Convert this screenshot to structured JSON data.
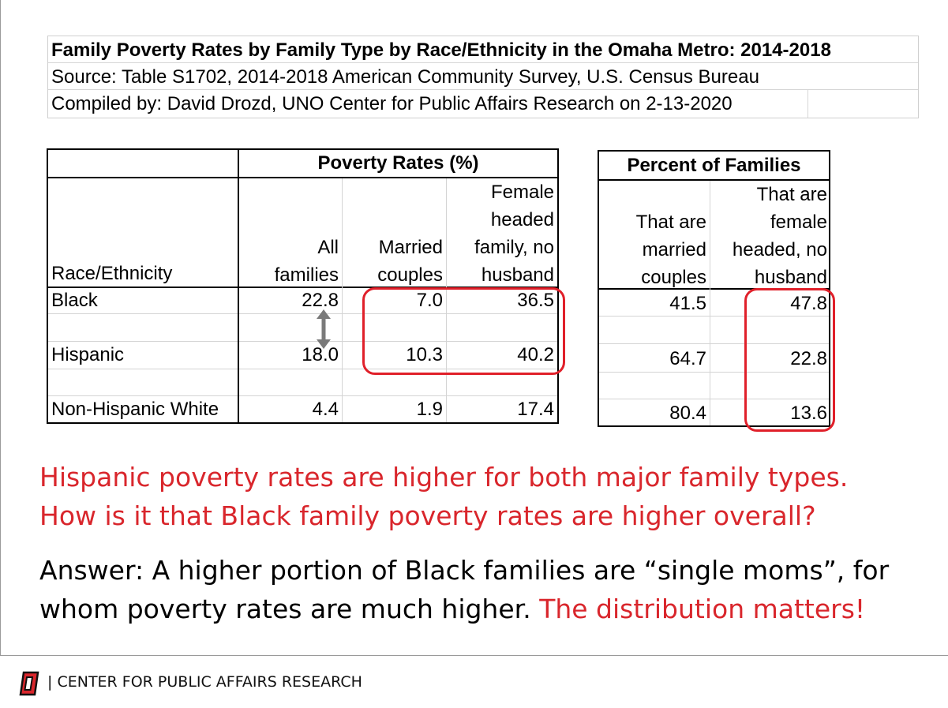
{
  "title_block": {
    "title": "Family Poverty Rates by Family Type by Race/Ethnicity in the Omaha Metro: 2014-2018",
    "source": "Source: Table S1702, 2014-2018 American Community Survey, U.S. Census Bureau",
    "compiled": "Compiled by: David Drozd, UNO Center for Public Affairs Research on 2-13-2020"
  },
  "poverty_table": {
    "group_header": "Poverty Rates (%)",
    "row_header": "Race/Ethnicity",
    "col_all": [
      "All",
      "families"
    ],
    "col_married": [
      "Married",
      "couples"
    ],
    "col_female": [
      "Female",
      "headed",
      "family, no",
      "husband"
    ],
    "rows": [
      {
        "race": "Black",
        "all": "22.8",
        "married": "7.0",
        "female": "36.5"
      },
      {
        "race": "Hispanic",
        "all": "18.0",
        "married": "10.3",
        "female": "40.2"
      },
      {
        "race": "Non-Hispanic White",
        "all": "4.4",
        "married": "1.9",
        "female": "17.4"
      }
    ]
  },
  "families_table": {
    "group_header": "Percent of Families",
    "col_married": [
      "That are",
      "married",
      "couples"
    ],
    "col_female": [
      "That are",
      "female",
      "headed, no",
      "husband"
    ],
    "rows": [
      {
        "married": "41.5",
        "female": "47.8"
      },
      {
        "married": "64.7",
        "female": "22.8"
      },
      {
        "married": "80.4",
        "female": "13.6"
      }
    ]
  },
  "message": {
    "line1": "Hispanic poverty rates are higher for both major family types.",
    "line2": "How is it that Black family poverty rates are higher overall?",
    "answer_line1": "Answer: A higher portion of Black families are “single moms”, for",
    "answer_line2_black": "whom poverty rates are much higher.",
    "answer_line2_red": "The distribution matters!"
  },
  "footer": {
    "logo_icon": "uno-o-logo-icon",
    "separator": "|",
    "org": "CENTER FOR PUBLIC AFFAIRS RESEARCH"
  },
  "colors": {
    "accent_red": "#d9262c",
    "oval_red": "#e0202a"
  }
}
